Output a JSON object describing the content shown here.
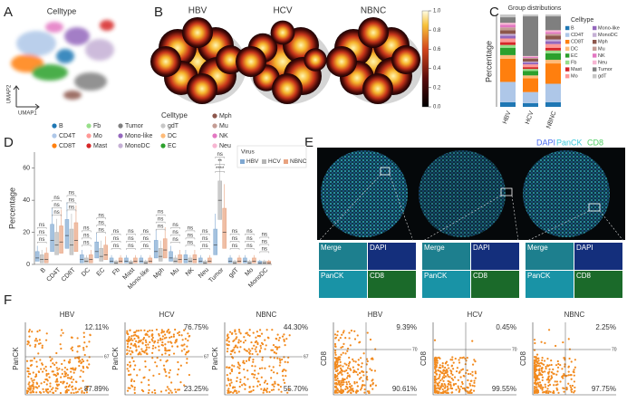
{
  "panel_labels": [
    "A",
    "B",
    "C",
    "D",
    "E",
    "F"
  ],
  "panel_a": {
    "title": "Celltype",
    "x_axis": "UMAP1",
    "y_axis": "UMAP2",
    "legend_title": "Celltype",
    "legend": [
      {
        "name": "B",
        "color": "#1f77b4"
      },
      {
        "name": "CD4T",
        "color": "#aec7e8"
      },
      {
        "name": "CD8T",
        "color": "#ff7f0e"
      },
      {
        "name": "Fb",
        "color": "#98df8a"
      },
      {
        "name": "Mo",
        "color": "#ff9896"
      },
      {
        "name": "Mast",
        "color": "#d62728"
      },
      {
        "name": "Tumor",
        "color": "#7f7f7f"
      },
      {
        "name": "Mono-like",
        "color": "#9467bd"
      },
      {
        "name": "MonoDC",
        "color": "#c5b0d5"
      },
      {
        "name": "gdT",
        "color": "#c7c7c7"
      },
      {
        "name": "DC",
        "color": "#ffbb78"
      },
      {
        "name": "EC",
        "color": "#2ca02c"
      },
      {
        "name": "Mph",
        "color": "#8c564b"
      },
      {
        "name": "Mu",
        "color": "#c49c94"
      },
      {
        "name": "NK",
        "color": "#e377c2"
      },
      {
        "name": "Neu",
        "color": "#f7b6d2"
      }
    ]
  },
  "panel_b": {
    "groups": [
      "HBV",
      "HCV",
      "NBNC"
    ],
    "colorbar": {
      "lim": [
        0,
        1
      ],
      "ticks": [
        {
          "value": 0,
          "label": "0.0"
        },
        {
          "value": 0.2,
          "label": "0.2"
        },
        {
          "value": 0.4,
          "label": "0.4"
        },
        {
          "value": 0.6,
          "label": "0.6"
        },
        {
          "value": 0.8,
          "label": "0.8"
        },
        {
          "value": 1,
          "label": "1.0"
        }
      ]
    }
  },
  "chart_data": [
    {
      "type": "bar",
      "stacked": true,
      "title": "Group distributions",
      "y_label": "Percentage",
      "legend_title": "Celltype",
      "categories": [
        "HBV",
        "HCV",
        "NBNC"
      ],
      "ylim": [
        0,
        100
      ],
      "series": [
        {
          "name": "B",
          "color": "#1f77b4",
          "values": [
            5,
            4,
            5
          ]
        },
        {
          "name": "CD4T",
          "color": "#aec7e8",
          "values": [
            22,
            12,
            20
          ]
        },
        {
          "name": "CD8T",
          "color": "#ff7f0e",
          "values": [
            25,
            15,
            22
          ]
        },
        {
          "name": "DC",
          "color": "#ffbb78",
          "values": [
            4,
            3,
            4
          ]
        },
        {
          "name": "EC",
          "color": "#2ca02c",
          "values": [
            8,
            5,
            7
          ]
        },
        {
          "name": "Fb",
          "color": "#98df8a",
          "values": [
            3,
            2,
            3
          ]
        },
        {
          "name": "Mast",
          "color": "#d62728",
          "values": [
            3,
            2,
            3
          ]
        },
        {
          "name": "Mo",
          "color": "#ff9896",
          "values": [
            4,
            3,
            4
          ]
        },
        {
          "name": "Mono-like",
          "color": "#9467bd",
          "values": [
            3,
            2,
            3
          ]
        },
        {
          "name": "MonoDC",
          "color": "#c5b0d5",
          "values": [
            2,
            1,
            2
          ]
        },
        {
          "name": "Mph",
          "color": "#8c564b",
          "values": [
            4,
            3,
            4
          ]
        },
        {
          "name": "Mu",
          "color": "#c49c94",
          "values": [
            3,
            1,
            2
          ]
        },
        {
          "name": "NK",
          "color": "#e377c2",
          "values": [
            3,
            1,
            2
          ]
        },
        {
          "name": "Neu",
          "color": "#f7b6d2",
          "values": [
            2,
            1,
            2
          ]
        },
        {
          "name": "Tumor",
          "color": "#7f7f7f",
          "values": [
            6,
            43,
            15
          ]
        },
        {
          "name": "gdT",
          "color": "#c7c7c7",
          "values": [
            3,
            2,
            2
          ]
        }
      ]
    },
    {
      "type": "box",
      "y_label": "Percentage",
      "legend_title": "Virus",
      "categories": [
        "B",
        "CD4T",
        "CD8T",
        "DC",
        "EC",
        "Fb",
        "Mast",
        "Mono-like",
        "Mph",
        "Mu",
        "NK",
        "Neu",
        "Tumor",
        "gdT",
        "Mo",
        "MonoDC"
      ],
      "ylim": [
        0,
        70
      ],
      "yticks": [
        0,
        20,
        40,
        60
      ],
      "series": [
        {
          "name": "HBV",
          "color": "#7fa8d1",
          "q1": [
            2,
            8,
            10,
            1,
            4,
            1,
            1,
            1,
            4,
            2,
            1,
            1,
            6,
            1,
            1,
            0.5
          ],
          "median": [
            4,
            15,
            18,
            3,
            8,
            2,
            2,
            2,
            8,
            4,
            3,
            2,
            12,
            2,
            2,
            1
          ],
          "q3": [
            8,
            25,
            28,
            6,
            14,
            4,
            4,
            4,
            15,
            8,
            6,
            4,
            22,
            4,
            4,
            2
          ]
        },
        {
          "name": "HCV",
          "color": "#b5b5b5",
          "q1": [
            1,
            6,
            6,
            1,
            2,
            0.5,
            0.5,
            0.5,
            2,
            1,
            1,
            0.5,
            28,
            0.5,
            0.5,
            0.5
          ],
          "median": [
            3,
            12,
            12,
            2,
            5,
            1,
            1,
            1,
            5,
            2,
            2,
            1,
            40,
            1,
            1,
            1
          ],
          "q3": [
            6,
            20,
            22,
            4,
            10,
            2,
            2,
            2,
            10,
            4,
            4,
            2,
            52,
            2,
            2,
            2
          ]
        },
        {
          "name": "NBNC",
          "color": "#e8a27f",
          "q1": [
            1,
            7,
            8,
            1,
            3,
            1,
            1,
            1,
            4,
            1,
            1,
            1,
            10,
            1,
            1,
            0.5
          ],
          "median": [
            3,
            14,
            15,
            3,
            6,
            2,
            2,
            2,
            9,
            3,
            3,
            2,
            20,
            2,
            2,
            1
          ],
          "q3": [
            7,
            24,
            26,
            6,
            12,
            4,
            4,
            4,
            16,
            6,
            6,
            4,
            35,
            4,
            4,
            2
          ]
        }
      ],
      "significance": [
        [
          "ns",
          "ns",
          "ns"
        ],
        [
          "ns",
          "ns",
          "ns"
        ],
        [
          "ns",
          "ns",
          "ns"
        ],
        [
          "ns",
          "ns",
          "ns"
        ],
        [
          "ns",
          "ns",
          "ns"
        ],
        [
          "ns",
          "ns",
          "ns"
        ],
        [
          "ns",
          "ns",
          "ns"
        ],
        [
          "ns",
          "ns",
          "ns"
        ],
        [
          "ns",
          "ns",
          "ns"
        ],
        [
          "ns",
          "ns",
          "ns"
        ],
        [
          "ns",
          "ns",
          "ns"
        ],
        [
          "ns",
          "ns",
          "ns"
        ],
        [
          "****",
          "**",
          "ns"
        ],
        [
          "ns",
          "ns",
          "ns"
        ],
        [
          "ns",
          "ns",
          "ns"
        ],
        [
          "ns",
          "ns",
          "ns"
        ]
      ]
    }
  ],
  "panel_e": {
    "channels": [
      {
        "name": "DAPI",
        "color": "#4a6cf0"
      },
      {
        "name": "PanCK",
        "color": "#3bc9db"
      },
      {
        "name": "CD8",
        "color": "#51cf66"
      }
    ],
    "insets": [
      [
        "Merge",
        "DAPI",
        "PanCK",
        "CD8"
      ],
      [
        "Merge",
        "DAPI",
        "PanCK",
        "CD8"
      ],
      [
        "Merge",
        "DAPI",
        "PanCK",
        "CD8"
      ]
    ]
  },
  "panel_f": {
    "plots": [
      {
        "title": "HBV",
        "y_label": "PanCK",
        "upper": "12.11%",
        "lower": "87.89%",
        "gate": "67"
      },
      {
        "title": "HCV",
        "y_label": "PanCK",
        "upper": "76.75%",
        "lower": "23.25%",
        "gate": "67"
      },
      {
        "title": "NBNC",
        "y_label": "PanCK",
        "upper": "44.30%",
        "lower": "55.70%",
        "gate": "67"
      },
      {
        "title": "HBV",
        "y_label": "CD8",
        "upper": "9.39%",
        "lower": "90.61%",
        "gate": "70"
      },
      {
        "title": "HCV",
        "y_label": "CD8",
        "upper": "0.45%",
        "lower": "99.55%",
        "gate": "70"
      },
      {
        "title": "NBNC",
        "y_label": "CD8",
        "upper": "2.25%",
        "lower": "97.75%",
        "gate": "70"
      }
    ]
  }
}
